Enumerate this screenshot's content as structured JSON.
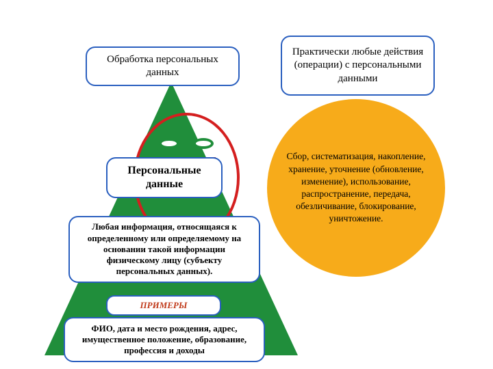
{
  "background_color": "#ffffff",
  "triangle": {
    "fill_color": "#208e3b"
  },
  "circle": {
    "fill_color": "#f7ab1a",
    "text": "Сбор, систематизация, накопление, хранение, уточнение (обновление, изменение), использование, распространение, передача, обезличивание, блокирование, уничтожение.",
    "font_size": 13.5
  },
  "face": {
    "oval_border_color": "#d41f1f",
    "eye_border_color": "#208e3b",
    "smile_color": "#d41f1f"
  },
  "boxes": {
    "border_color": "#2a5fbf",
    "top_left": {
      "text": "Обработка персональных данных",
      "font_size": 15
    },
    "top_right": {
      "text": "Практически любые действия (операции) с персональными данными",
      "font_size": 15
    },
    "title": {
      "text": "Персональные данные",
      "font_size": 16,
      "font_weight": "bold"
    },
    "desc": {
      "text": "Любая информация, относящаяся к определенному или определяемому на основании такой информации физическому лицу (субъекту персональных данных).",
      "font_size": 13,
      "font_weight": "bold"
    },
    "examples_label": {
      "text": "ПРИМЕРЫ",
      "font_size": 13,
      "font_weight": "bold",
      "font_style": "italic",
      "color": "#c03a1a"
    },
    "examples": {
      "text": "ФИО, дата и место рождения, адрес, имущественное положение, образование, профессия и доходы",
      "font_size": 13,
      "font_weight": "bold"
    }
  }
}
